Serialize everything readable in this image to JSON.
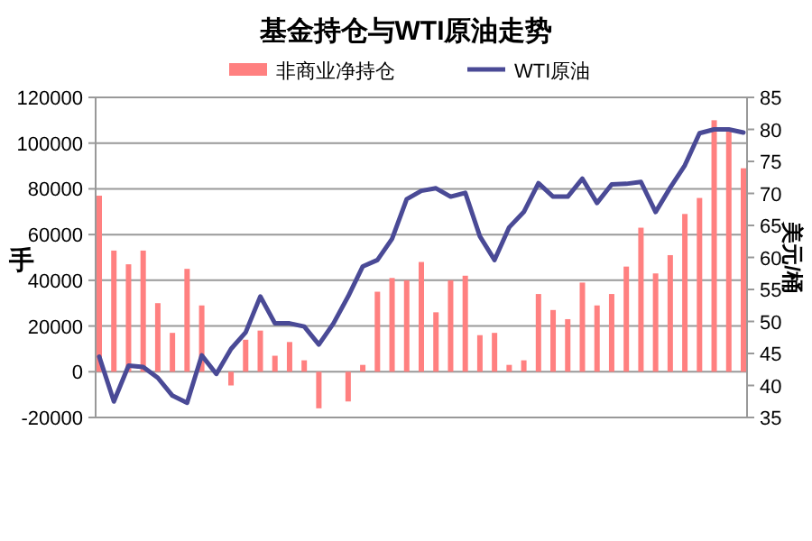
{
  "chart_data": {
    "type": "bar",
    "title": "基金持仓与WTI原油走势",
    "ylabel": "手",
    "y2label": "美元/桶",
    "legend": "top",
    "grid": "y",
    "categories": [
      null,
      null,
      null,
      null,
      null,
      null,
      null,
      null,
      null,
      null,
      null,
      null,
      null,
      null,
      null,
      null,
      null,
      null,
      null,
      null,
      null,
      null,
      null,
      null,
      null,
      null,
      null,
      null,
      null,
      null,
      null,
      null,
      null,
      null,
      null,
      null,
      null,
      null,
      null,
      null,
      null,
      null,
      null,
      null,
      null
    ],
    "ylim": [
      -20000,
      120000
    ],
    "yticks": [
      -20000,
      0,
      20000,
      40000,
      60000,
      80000,
      100000,
      120000
    ],
    "y2lim": [
      35,
      85
    ],
    "y2ticks": [
      35,
      40,
      45,
      50,
      55,
      60,
      65,
      70,
      75,
      80,
      85
    ],
    "series": [
      {
        "name": "非商业净持仓",
        "type": "bar",
        "color": "#ff8080",
        "values": [
          77000,
          53000,
          47000,
          53000,
          30000,
          17000,
          45000,
          29000,
          0,
          -6000,
          14000,
          18000,
          7000,
          13000,
          5000,
          -16000,
          0,
          -13000,
          3000,
          35000,
          41000,
          40000,
          48000,
          26000,
          40000,
          42000,
          16000,
          17000,
          3000,
          5000,
          34000,
          27000,
          23000,
          39000,
          29000,
          34000,
          46000,
          63000,
          43000,
          51000,
          69000,
          76000,
          110000,
          105000,
          89000
        ]
      },
      {
        "name": "WTI原油",
        "type": "line",
        "axis": "y2",
        "color": "#4a4a96",
        "values": [
          44.5,
          37.5,
          43.1,
          42.9,
          41.2,
          38.4,
          37.3,
          44.7,
          41.8,
          45.7,
          48.3,
          53.9,
          49.7,
          49.7,
          49.2,
          46.4,
          49.7,
          53.9,
          58.6,
          59.6,
          62.9,
          69.1,
          70.4,
          70.8,
          69.5,
          70.1,
          63.3,
          59.6,
          64.7,
          67.1,
          71.6,
          69.5,
          69.5,
          72.3,
          68.5,
          71.4,
          71.5,
          71.8,
          67.1,
          70.9,
          74.4,
          79.4,
          80.0,
          80.0,
          79.5
        ]
      }
    ]
  }
}
